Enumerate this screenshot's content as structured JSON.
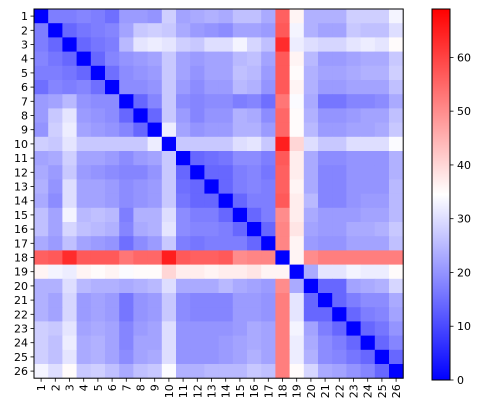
{
  "chart_data": {
    "type": "heatmap",
    "title": "",
    "xlabel": "",
    "ylabel": "",
    "x_labels": [
      "1",
      "2",
      "3",
      "4",
      "5",
      "6",
      "7",
      "8",
      "9",
      "10",
      "11",
      "12",
      "13",
      "14",
      "15",
      "16",
      "17",
      "18",
      "19",
      "20",
      "21",
      "22",
      "23",
      "24",
      "25",
      "26"
    ],
    "y_labels": [
      "1",
      "2",
      "3",
      "4",
      "5",
      "6",
      "7",
      "8",
      "9",
      "10",
      "11",
      "12",
      "13",
      "14",
      "15",
      "16",
      "17",
      "18",
      "19",
      "20",
      "21",
      "22",
      "23",
      "24",
      "25",
      "26"
    ],
    "colorbar": {
      "colormap": "bwr",
      "vmin": 0,
      "vmax": 69,
      "ticks": [
        0,
        10,
        20,
        30,
        40,
        50,
        60
      ],
      "tick_labels": [
        "0",
        "10",
        "20",
        "30",
        "40",
        "50",
        "60"
      ]
    },
    "colors": {
      "low": "#0000ff",
      "mid": "#ffffff",
      "high": "#ff0000"
    },
    "grid": false,
    "values": [
      [
        0,
        17,
        17,
        18,
        17,
        15,
        21,
        21,
        20,
        28,
        22,
        23,
        24,
        23,
        26,
        26,
        23,
        56,
        36,
        24,
        24,
        24,
        28,
        28,
        28,
        33
      ],
      [
        17,
        0,
        14,
        16,
        17,
        18,
        22,
        27,
        28,
        27,
        23,
        21,
        20,
        19,
        22,
        22,
        21,
        57,
        33,
        24,
        22,
        22,
        27,
        26,
        26,
        30
      ],
      [
        17,
        14,
        0,
        14,
        16,
        17,
        25,
        31,
        32,
        31,
        28,
        27,
        30,
        30,
        33,
        29,
        26,
        63,
        32,
        30,
        29,
        29,
        31,
        32,
        31,
        35
      ],
      [
        18,
        16,
        14,
        0,
        14,
        18,
        20,
        21,
        22,
        27,
        22,
        21,
        22,
        22,
        25,
        26,
        22,
        57,
        36,
        25,
        21,
        21,
        22,
        23,
        23,
        27
      ],
      [
        17,
        17,
        16,
        14,
        0,
        15,
        19,
        20,
        21,
        27,
        22,
        20,
        22,
        22,
        26,
        25,
        21,
        57,
        35,
        24,
        22,
        22,
        23,
        24,
        24,
        28
      ],
      [
        15,
        18,
        17,
        18,
        15,
        0,
        19,
        19,
        20,
        27,
        21,
        19,
        21,
        21,
        25,
        24,
        20,
        57,
        36,
        24,
        21,
        21,
        22,
        22,
        22,
        26
      ],
      [
        21,
        22,
        25,
        20,
        19,
        19,
        0,
        14,
        18,
        27,
        19,
        18,
        19,
        19,
        17,
        18,
        15,
        53,
        34,
        23,
        16,
        16,
        18,
        18,
        19,
        23
      ],
      [
        21,
        27,
        31,
        21,
        20,
        19,
        14,
        0,
        14,
        27,
        21,
        18,
        20,
        20,
        24,
        23,
        19,
        55,
        35,
        24,
        20,
        20,
        21,
        22,
        22,
        26
      ],
      [
        20,
        28,
        32,
        22,
        21,
        20,
        18,
        14,
        0,
        32,
        22,
        20,
        21,
        21,
        24,
        24,
        21,
        55,
        35,
        25,
        21,
        21,
        22,
        22,
        23,
        27
      ],
      [
        28,
        27,
        31,
        27,
        27,
        27,
        27,
        27,
        32,
        0,
        27,
        27,
        27,
        27,
        30,
        31,
        27,
        65,
        40,
        30,
        27,
        27,
        30,
        30,
        30,
        34
      ],
      [
        22,
        23,
        28,
        22,
        22,
        21,
        19,
        21,
        22,
        27,
        0,
        14,
        15,
        16,
        19,
        19,
        17,
        57,
        37,
        23,
        19,
        19,
        20,
        20,
        20,
        24
      ],
      [
        23,
        21,
        27,
        21,
        20,
        19,
        18,
        18,
        20,
        27,
        14,
        0,
        14,
        14,
        17,
        18,
        16,
        56,
        37,
        23,
        18,
        18,
        20,
        20,
        20,
        24
      ],
      [
        24,
        20,
        30,
        22,
        22,
        21,
        19,
        20,
        21,
        27,
        15,
        14,
        0,
        14,
        17,
        18,
        17,
        56,
        36,
        23,
        18,
        18,
        20,
        20,
        20,
        25
      ],
      [
        23,
        19,
        30,
        22,
        22,
        21,
        19,
        20,
        21,
        27,
        16,
        14,
        14,
        0,
        14,
        17,
        17,
        57,
        37,
        25,
        18,
        18,
        20,
        21,
        21,
        25
      ],
      [
        26,
        22,
        33,
        25,
        26,
        25,
        17,
        24,
        24,
        30,
        19,
        17,
        17,
        14,
        0,
        14,
        17,
        50,
        37,
        23,
        21,
        21,
        21,
        22,
        22,
        25
      ],
      [
        26,
        22,
        29,
        26,
        25,
        24,
        18,
        23,
        24,
        31,
        19,
        18,
        18,
        17,
        14,
        0,
        14,
        51,
        38,
        22,
        21,
        21,
        23,
        23,
        24,
        27
      ],
      [
        23,
        21,
        26,
        22,
        21,
        20,
        15,
        19,
        21,
        27,
        17,
        16,
        17,
        17,
        17,
        14,
        0,
        51,
        36,
        21,
        20,
        20,
        22,
        22,
        22,
        26
      ],
      [
        56,
        57,
        63,
        57,
        57,
        57,
        53,
        55,
        55,
        65,
        57,
        56,
        56,
        57,
        50,
        51,
        51,
        0,
        36,
        50,
        52,
        52,
        52,
        52,
        52,
        52
      ],
      [
        36,
        33,
        32,
        36,
        35,
        36,
        34,
        35,
        35,
        40,
        37,
        37,
        36,
        37,
        37,
        38,
        36,
        36,
        0,
        23,
        31,
        31,
        33,
        32,
        32,
        35
      ],
      [
        24,
        24,
        30,
        25,
        24,
        24,
        23,
        24,
        25,
        30,
        23,
        23,
        23,
        25,
        23,
        22,
        21,
        50,
        23,
        0,
        14,
        14,
        22,
        23,
        24,
        29
      ],
      [
        24,
        22,
        29,
        21,
        22,
        21,
        16,
        20,
        21,
        27,
        19,
        18,
        18,
        18,
        21,
        21,
        20,
        52,
        31,
        14,
        0,
        14,
        17,
        19,
        19,
        23
      ],
      [
        24,
        22,
        29,
        21,
        22,
        21,
        16,
        20,
        21,
        27,
        19,
        18,
        18,
        18,
        21,
        21,
        20,
        52,
        31,
        14,
        14,
        0,
        14,
        17,
        18,
        22
      ],
      [
        28,
        27,
        31,
        22,
        23,
        22,
        18,
        21,
        22,
        30,
        20,
        20,
        20,
        20,
        21,
        23,
        22,
        52,
        33,
        22,
        17,
        14,
        0,
        14,
        16,
        20
      ],
      [
        28,
        26,
        32,
        23,
        24,
        22,
        18,
        22,
        22,
        30,
        20,
        20,
        20,
        21,
        22,
        23,
        22,
        52,
        32,
        23,
        19,
        17,
        14,
        0,
        14,
        18
      ],
      [
        28,
        26,
        31,
        23,
        24,
        22,
        19,
        22,
        23,
        30,
        20,
        20,
        20,
        21,
        22,
        24,
        22,
        52,
        32,
        24,
        19,
        18,
        16,
        14,
        0,
        14
      ],
      [
        33,
        30,
        35,
        27,
        28,
        26,
        23,
        26,
        27,
        34,
        24,
        24,
        25,
        25,
        25,
        27,
        26,
        52,
        35,
        29,
        23,
        22,
        20,
        18,
        14,
        0
      ]
    ]
  }
}
